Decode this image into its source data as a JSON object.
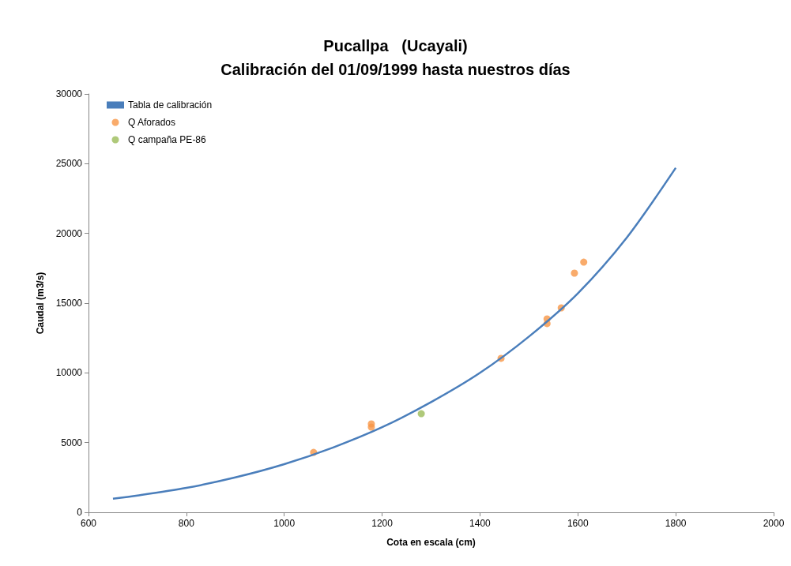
{
  "chart_data": {
    "type": "scatter",
    "title": "Pucallpa   (Ucayali)\nCalibración del 01/09/1999 hasta nuestros días",
    "xlabel": "Cota en escala (cm)",
    "ylabel": "Caudal (m3/s)",
    "xlim": [
      600,
      2000
    ],
    "xticks": [
      600,
      800,
      1000,
      1200,
      1400,
      1600,
      1800,
      2000
    ],
    "ylim": [
      0,
      30000
    ],
    "yticks": [
      0,
      5000,
      10000,
      15000,
      20000,
      25000,
      30000
    ],
    "grid": false,
    "legend": "top left",
    "marker": "circle",
    "series": [
      {
        "name": "Tabla de calibración",
        "type": "line",
        "color": "#4a7ebb",
        "marker": "none",
        "x": [
          650,
          700,
          800,
          900,
          1000,
          1100,
          1200,
          1300,
          1400,
          1500,
          1600,
          1700,
          1800
        ],
        "values": [
          980,
          1200,
          1750,
          2500,
          3450,
          4650,
          6100,
          7900,
          10000,
          12600,
          15700,
          19700,
          24700
        ]
      },
      {
        "name": "Q Aforados",
        "color": "#f79646",
        "x": [
          1060,
          1178,
          1178,
          1443,
          1537,
          1537,
          1566,
          1593,
          1612
        ],
        "values": [
          4300,
          6340,
          6110,
          11040,
          13870,
          13530,
          14660,
          17150,
          17940
        ]
      },
      {
        "name": "Q campaña PE-86",
        "color": "#9bbb59",
        "x": [
          1280
        ],
        "values": [
          7070
        ]
      }
    ]
  }
}
